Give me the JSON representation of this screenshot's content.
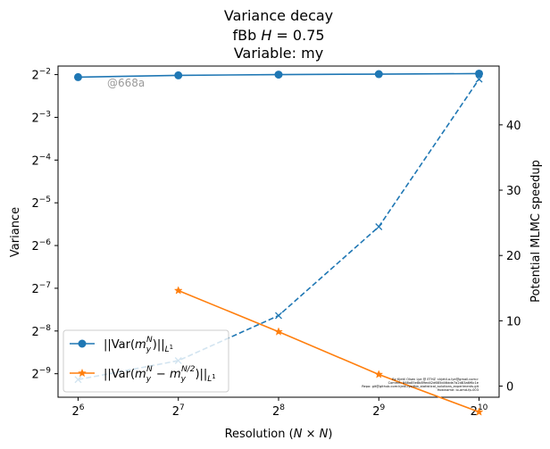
{
  "chart_data": {
    "type": "line",
    "title_lines": [
      "Variance decay",
      "fBb H = 0.75",
      "Variable: my"
    ],
    "title_line2_prefix": "fBb ",
    "title_line2_var": "H",
    "title_line2_rest": " = 0.75",
    "xlabel_prefix": "Resolution (",
    "xlabel_var": "N × N",
    "xlabel_suffix": ")",
    "ylabel": "Variance",
    "y2label": "Potential MLMC speedup",
    "x_scale": "log2",
    "y_scale": "log2",
    "x_ticks": [
      {
        "value": 64,
        "base": "2",
        "exp": "6"
      },
      {
        "value": 128,
        "base": "2",
        "exp": "7"
      },
      {
        "value": 256,
        "base": "2",
        "exp": "8"
      },
      {
        "value": 512,
        "base": "2",
        "exp": "9"
      },
      {
        "value": 1024,
        "base": "2",
        "exp": "10"
      }
    ],
    "y_ticks": [
      {
        "exp_value": -2,
        "base": "2",
        "exp": "−2"
      },
      {
        "exp_value": -3,
        "base": "2",
        "exp": "−3"
      },
      {
        "exp_value": -4,
        "base": "2",
        "exp": "−4"
      },
      {
        "exp_value": -5,
        "base": "2",
        "exp": "−5"
      },
      {
        "exp_value": -6,
        "base": "2",
        "exp": "−6"
      },
      {
        "exp_value": -7,
        "base": "2",
        "exp": "−7"
      },
      {
        "exp_value": -8,
        "base": "2",
        "exp": "−8"
      },
      {
        "exp_value": -9,
        "base": "2",
        "exp": "−9"
      }
    ],
    "y2_ticks": [
      "0",
      "10",
      "20",
      "30",
      "40"
    ],
    "y2_tick_values": [
      0,
      10,
      20,
      30,
      40
    ],
    "series": [
      {
        "name": "||Var(m_y^N)||_{L^1}",
        "legend_parts": [
          "||Var(",
          "m",
          "y",
          "N",
          ")||",
          "L",
          "1"
        ],
        "axis": "left",
        "color": "#1f77b4",
        "marker": "circle",
        "linestyle": "solid",
        "x": [
          64,
          128,
          256,
          512,
          1024
        ],
        "y": [
          0.24,
          0.247,
          0.25,
          0.252,
          0.254
        ]
      },
      {
        "name": "||Var(m_y^N − m_y^{N/2})||_{L^1}",
        "legend_parts": [
          "||Var(",
          "m",
          "y",
          "N",
          " − ",
          "m",
          "y",
          "N/2",
          ")||",
          "L",
          "1"
        ],
        "axis": "left",
        "color": "#ff7f0e",
        "marker": "star",
        "linestyle": "solid",
        "x": [
          128,
          256,
          512,
          1024
        ],
        "y": [
          0.00753,
          0.00386,
          0.00193,
          0.00105
        ]
      },
      {
        "axis": "right",
        "color": "#1f77b4",
        "marker": "x",
        "linestyle": "dashed",
        "x": [
          64,
          128,
          256,
          512,
          1024
        ],
        "y": [
          1.0,
          3.9,
          10.8,
          24.4,
          47.0
        ]
      }
    ],
    "legend_position": "lower-left",
    "grid": false
  },
  "watermark": "@668a",
  "footer_lines": [
    "By Kjetil Olsen Lye @ ETHZ <kjetil.o.lye@gmail.com>",
    "Commit: 868a85e8b89ed42d685d46dde7a2d83a6f6c1e",
    "Repo: git@github.com:kjetil-lye/fbb_statistical_solutions_experiments.git",
    "Hostname: lo-amd-fp-003"
  ]
}
